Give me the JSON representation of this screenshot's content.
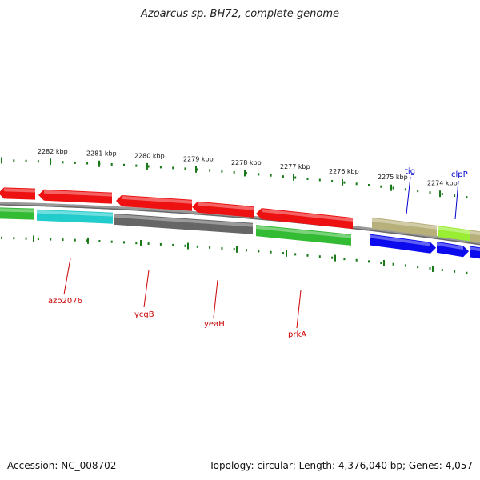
{
  "title": "Azoarcus sp. BH72, complete genome",
  "footer": {
    "accession": "Accession: NC_008702",
    "summary": "Topology: circular; Length: 4,376,040 bp; Genes: 4,057"
  },
  "colors": {
    "tick": "#1a7a1a",
    "backbone": "#808080",
    "label_red": "#cc0000",
    "label_blue": "#0000cc",
    "red": "#ee1111",
    "cyan": "#22cccc",
    "gray": "#666666",
    "green": "#33bb33",
    "khaki": "#b8b07a",
    "lime": "#99ee33",
    "blue": "#0b0bee"
  },
  "kbp_labels": [
    "2282 kbp",
    "2281 kbp",
    "2280 kbp",
    "2279 kbp",
    "2278 kbp",
    "2277 kbp",
    "2276 kbp",
    "2275 kbp",
    "2274 kbp"
  ],
  "gene_labels": [
    {
      "name": "azo2076",
      "color": "red"
    },
    {
      "name": "ycgB",
      "color": "red"
    },
    {
      "name": "yeaH",
      "color": "red"
    },
    {
      "name": "prkA",
      "color": "red"
    },
    {
      "name": "tig",
      "color": "blue"
    },
    {
      "name": "clpP",
      "color": "blue"
    }
  ]
}
